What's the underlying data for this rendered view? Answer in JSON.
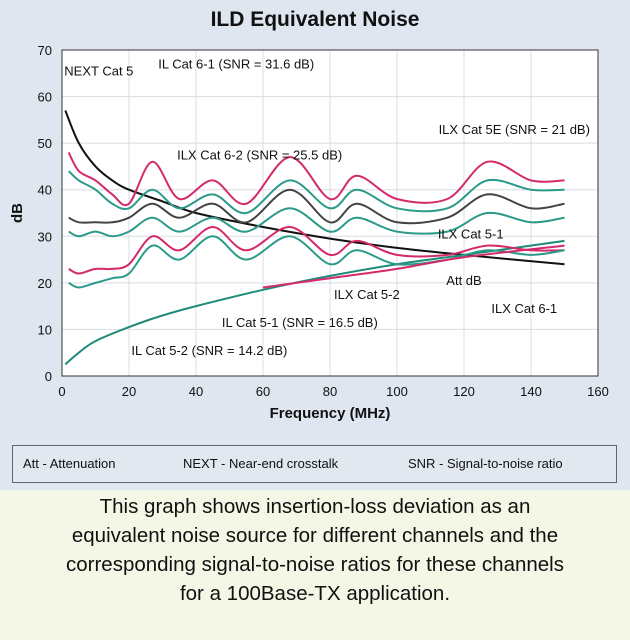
{
  "chart_data": {
    "type": "line",
    "title": "ILD Equivalent Noise",
    "xlabel": "Frequency (MHz)",
    "ylabel": "dB",
    "xlim": [
      0,
      160
    ],
    "ylim": [
      0,
      70
    ],
    "x_ticks": [
      0,
      20,
      40,
      60,
      80,
      100,
      120,
      140,
      160
    ],
    "y_ticks": [
      0,
      10,
      20,
      30,
      40,
      50,
      60,
      70
    ],
    "grid": true,
    "series": [
      {
        "name": "NEXT Cat 5",
        "color": "#111111",
        "x": [
          1,
          5,
          10,
          15,
          20,
          30,
          40,
          60,
          80,
          100,
          120,
          150
        ],
        "y": [
          57,
          50,
          45,
          42,
          40,
          37.5,
          35,
          32,
          29.5,
          27.5,
          26,
          24
        ]
      },
      {
        "name": "Att dB",
        "color": "#1f8a7a",
        "x": [
          1,
          5,
          10,
          20,
          30,
          40,
          60,
          80,
          100,
          120,
          150
        ],
        "y": [
          2.5,
          5,
          7.5,
          10.5,
          13,
          15,
          18.5,
          21.5,
          24,
          26,
          29
        ]
      },
      {
        "name": "IL Cat 6-1 (SNR = 31.6 dB)",
        "color": "#d42a6a",
        "x": [
          2,
          5,
          10,
          15,
          20,
          27,
          35,
          45,
          55,
          68,
          80,
          88,
          100,
          115,
          127,
          140,
          150
        ],
        "y": [
          48,
          44,
          42,
          39,
          37,
          46,
          38,
          42,
          37,
          47,
          38,
          43,
          38,
          38,
          46,
          42,
          42
        ]
      },
      {
        "name": "ILX Cat 5E (SNR = 21 dB)",
        "color": "#2c9a8a",
        "x": [
          2,
          5,
          10,
          15,
          20,
          27,
          35,
          45,
          55,
          68,
          80,
          88,
          100,
          115,
          127,
          140,
          150
        ],
        "y": [
          44,
          42,
          40,
          37,
          36,
          40,
          36,
          39,
          35,
          42,
          36,
          40,
          36,
          36,
          42,
          40,
          40
        ]
      },
      {
        "name": "ILX Cat 6-2 (SNR = 25.5 dB)",
        "color": "#444444",
        "x": [
          2,
          5,
          10,
          15,
          20,
          27,
          35,
          45,
          55,
          68,
          80,
          88,
          100,
          115,
          127,
          140,
          150
        ],
        "y": [
          34,
          33,
          33,
          33,
          34,
          37,
          34,
          37,
          33,
          40,
          33,
          37,
          33,
          34,
          39,
          36,
          37
        ]
      },
      {
        "name": "ILX Cat 5-2",
        "color": "#2c9a8a",
        "x": [
          2,
          5,
          10,
          15,
          20,
          27,
          35,
          45,
          55,
          68,
          80,
          88,
          100,
          115,
          127,
          140,
          150
        ],
        "y": [
          31,
          30,
          31,
          30,
          31,
          34,
          31,
          34,
          31,
          36,
          31,
          34,
          31,
          31,
          35,
          33,
          34
        ]
      },
      {
        "name": "IL Cat 5-1 (SNR = 16.5 dB)",
        "color": "#d42a6a",
        "x": [
          2,
          5,
          10,
          15,
          20,
          27,
          35,
          45,
          55,
          68,
          80,
          88,
          100,
          115,
          127,
          140,
          150
        ],
        "y": [
          23,
          22,
          23,
          23,
          24,
          30,
          27,
          32,
          27,
          32,
          26,
          29,
          26,
          26,
          28,
          27,
          27
        ]
      },
      {
        "name": "IL Cat 5-2 (SNR = 14.2 dB)",
        "color": "#2c9a8a",
        "x": [
          2,
          5,
          10,
          15,
          20,
          27,
          35,
          45,
          55,
          68,
          80,
          88,
          100,
          115,
          127,
          140,
          150
        ],
        "y": [
          20,
          19,
          20,
          21,
          22,
          28,
          25,
          30,
          25,
          30,
          24,
          27,
          24,
          25,
          27,
          26,
          27
        ]
      },
      {
        "name": "ILX Cat 6-1",
        "color": "#d42a6a",
        "x": [
          60,
          80,
          100,
          120,
          150
        ],
        "y": [
          19,
          21,
          23,
          25.5,
          28
        ]
      }
    ],
    "annotations": [
      {
        "text": "NEXT Cat 5",
        "x": 11,
        "y": 64.5
      },
      {
        "text": "IL Cat 6-1 (SNR = 31.6 dB)",
        "x": 52,
        "y": 66
      },
      {
        "text": "ILX Cat 5E (SNR = 21 dB)",
        "x": 135,
        "y": 52
      },
      {
        "text": "ILX Cat 6-2 (SNR = 25.5 dB)",
        "x": 59,
        "y": 46.5
      },
      {
        "text": "ILX Cat 5-1",
        "x": 122,
        "y": 29.5
      },
      {
        "text": "Att dB",
        "x": 120,
        "y": 19.5
      },
      {
        "text": "ILX Cat 5-2",
        "x": 91,
        "y": 16.5
      },
      {
        "text": "ILX Cat 6-1",
        "x": 138,
        "y": 13.5
      },
      {
        "text": "IL Cat 5-1 (SNR = 16.5 dB)",
        "x": 71,
        "y": 10.5
      },
      {
        "text": "IL Cat 5-2 (SNR = 14.2 dB)",
        "x": 44,
        "y": 4.5
      }
    ]
  },
  "legend": {
    "att": "Att - Attenuation",
    "next": "NEXT - Near-end crosstalk",
    "snr": "SNR - Signal-to-noise ratio"
  },
  "caption": {
    "lines": [
      "This graph shows insertion-loss deviation as an",
      "equivalent noise source for different channels and the",
      "corresponding signal-to-noise ratios for these channels",
      "for a 100Base-TX application."
    ]
  }
}
